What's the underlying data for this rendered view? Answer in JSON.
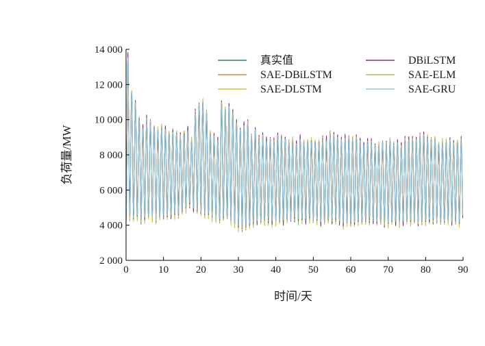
{
  "chart_data": {
    "type": "line",
    "title": "",
    "xlabel": "时间/天",
    "ylabel": "负荷量/MW",
    "xlim": [
      0,
      90
    ],
    "ylim": [
      2000,
      14000
    ],
    "xticks": [
      0,
      10,
      20,
      30,
      40,
      50,
      60,
      70,
      80,
      90
    ],
    "xtick_labels": [
      "0",
      "10",
      "20",
      "30",
      "40",
      "50",
      "60",
      "70",
      "80",
      "90"
    ],
    "yticks": [
      2000,
      4000,
      6000,
      8000,
      10000,
      12000,
      14000
    ],
    "ytick_labels": [
      "2 000",
      "4 000",
      "6 000",
      "8 000",
      "10 000",
      "12 000",
      "14 000"
    ],
    "grid": false,
    "legend_position": "top-right",
    "daily_cycles_approx": {
      "x_start": 0,
      "x_end": 90,
      "x_step_days": 1,
      "daily_peak": [
        12500,
        11500,
        11000,
        10000,
        9500,
        10000,
        9800,
        9600,
        9400,
        9600,
        9400,
        9200,
        9300,
        9200,
        9000,
        9200,
        9400,
        8800,
        10400,
        10800,
        11000,
        10400,
        9200,
        9000,
        8800,
        10900,
        10600,
        10700,
        10400,
        9800,
        9400,
        9600,
        9800,
        9000,
        9400,
        8900,
        9000,
        8800,
        8900,
        8700,
        9100,
        9000,
        8900,
        8700,
        8800,
        8600,
        8900,
        8700,
        8800,
        8800,
        8700,
        8700,
        8900,
        8800,
        9200,
        9100,
        9000,
        8800,
        8900,
        9000,
        8900,
        8900,
        8800,
        8600,
        8700,
        8700,
        8500,
        8500,
        8700,
        8600,
        8800,
        8600,
        8700,
        8500,
        8800,
        8800,
        8800,
        8900,
        9000,
        9100,
        9000,
        8800,
        8900,
        8600,
        8700,
        8700,
        8800,
        8600,
        8700,
        8800,
        9000
      ],
      "daily_trough": [
        4300,
        4500,
        4400,
        4500,
        4300,
        4400,
        4500,
        4500,
        4400,
        4500,
        4500,
        4600,
        4500,
        4600,
        4600,
        4800,
        5000,
        5200,
        5000,
        4800,
        4700,
        4600,
        4600,
        4500,
        4400,
        4300,
        4400,
        4400,
        4300,
        4100,
        3900,
        3800,
        3900,
        4000,
        4100,
        4200,
        4200,
        4300,
        4300,
        4200,
        4300,
        4200,
        4200,
        4300,
        4300,
        4400,
        4300,
        4300,
        4300,
        4400,
        4300,
        4300,
        4200,
        4200,
        4300,
        4300,
        4300,
        4200,
        4100,
        4100,
        4100,
        4200,
        4200,
        4200,
        4200,
        4300,
        4300,
        4200,
        4200,
        4100,
        4100,
        4200,
        4200,
        4200,
        4200,
        4300,
        4200,
        4200,
        4200,
        4200,
        4200,
        4300,
        4300,
        4200,
        4200,
        4200,
        4300,
        4200,
        4200,
        4100,
        4200
      ],
      "start_spike_peak": 13500
    },
    "series": [
      {
        "name": "真实值",
        "color": "#2c7f7f",
        "peak_offset": 0,
        "trough_offset": 0,
        "noise": 0
      },
      {
        "name": "DBiLSTM",
        "color": "#7b2a8a",
        "peak_offset": 150,
        "trough_offset": -120,
        "noise": 260
      },
      {
        "name": "SAE-DBiLSTM",
        "color": "#e0843a",
        "peak_offset": -60,
        "trough_offset": 80,
        "noise": 180
      },
      {
        "name": "SAE-ELM",
        "color": "#a5c454",
        "peak_offset": 100,
        "trough_offset": -200,
        "noise": 300
      },
      {
        "name": "SAE-DLSTM",
        "color": "#e6c030",
        "peak_offset": 80,
        "trough_offset": -80,
        "noise": 240
      },
      {
        "name": "SAE-GRU",
        "color": "#8fbfe0",
        "peak_offset": 0,
        "trough_offset": 40,
        "noise": 120
      }
    ]
  }
}
